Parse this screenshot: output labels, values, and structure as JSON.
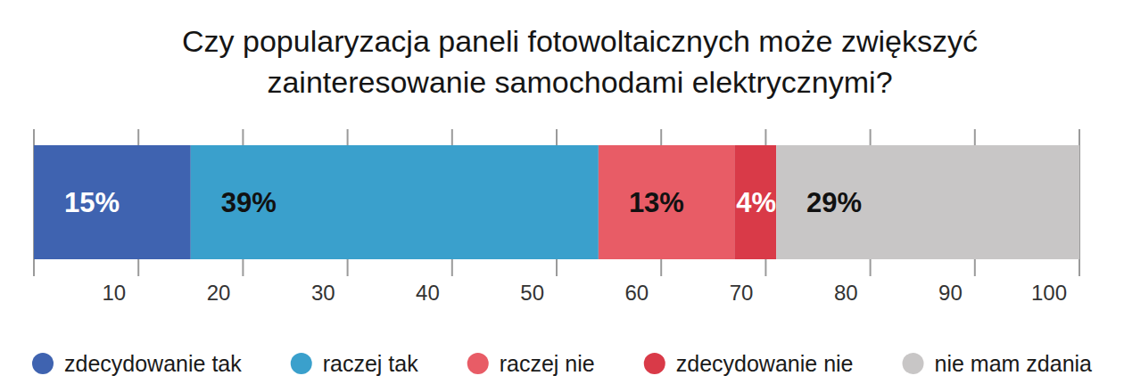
{
  "chart_data": {
    "type": "bar",
    "title": "Czy popularyzacja paneli fotowoltaicznych może zwiększyć zainteresowanie samochodami elektrycznymi?",
    "orientation": "horizontal",
    "stacked": true,
    "data_labels": true,
    "grid": false,
    "legend": "bottom",
    "categories": [
      null
    ],
    "xlim": [
      0,
      100
    ],
    "xticks": [
      10,
      20,
      30,
      40,
      50,
      60,
      70,
      80,
      90,
      100
    ],
    "series": [
      {
        "name": "zdecydowanie tak",
        "color": "#3f63b0",
        "values": [
          15
        ],
        "value_labels": [
          "15%"
        ]
      },
      {
        "name": "raczej tak",
        "color": "#3aa0cc",
        "values": [
          39
        ],
        "value_labels": [
          "39%"
        ]
      },
      {
        "name": "raczej nie",
        "color": "#e85c66",
        "values": [
          13
        ],
        "value_labels": [
          "13%"
        ]
      },
      {
        "name": "zdecydowanie nie",
        "color": "#d93a48",
        "values": [
          4
        ],
        "value_labels": [
          "4%"
        ]
      },
      {
        "name": "nie mam zdania",
        "color": "#c8c6c6",
        "values": [
          29
        ],
        "value_labels": [
          "29%"
        ]
      }
    ]
  }
}
